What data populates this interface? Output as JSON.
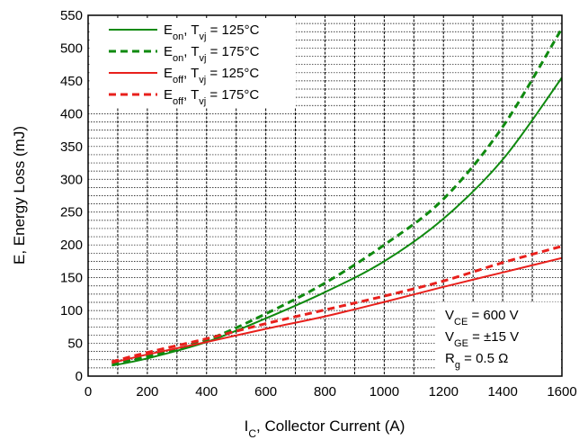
{
  "chart_data": {
    "type": "line",
    "xlabel": {
      "main": "I",
      "sub": "C",
      "rest": ", Collector Current (A)"
    },
    "ylabel": "E, Energy Loss (mJ)",
    "xlim": [
      0,
      1600
    ],
    "ylim": [
      0,
      550
    ],
    "xticks": [
      0,
      200,
      400,
      600,
      800,
      1000,
      1200,
      1400,
      1600
    ],
    "yticks": [
      0,
      50,
      100,
      150,
      200,
      250,
      300,
      350,
      400,
      450,
      500,
      550
    ],
    "grid": true,
    "legend_position": "top-left",
    "series": [
      {
        "name": "E_on, T_vj = 125°C",
        "label": {
          "base": "E",
          "sub": "on",
          "mid": ", T",
          "sub2": "vj",
          "rest": " = 125°C"
        },
        "color": "#0f8a0f",
        "dash": "solid",
        "x": [
          80,
          200,
          400,
          600,
          800,
          1000,
          1200,
          1400,
          1600
        ],
        "y": [
          16,
          27,
          52,
          88,
          128,
          175,
          240,
          330,
          455
        ]
      },
      {
        "name": "E_on, T_vj = 175°C",
        "label": {
          "base": "E",
          "sub": "on",
          "mid": ", T",
          "sub2": "vj",
          "rest": " = 175°C"
        },
        "color": "#0f8a0f",
        "dash": "dashed",
        "x": [
          80,
          200,
          400,
          600,
          800,
          1000,
          1200,
          1400,
          1600
        ],
        "y": [
          19,
          30,
          55,
          95,
          142,
          200,
          270,
          380,
          530
        ]
      },
      {
        "name": "E_off, T_vj = 125°C",
        "label": {
          "base": "E",
          "sub": "off",
          "mid": ", T",
          "sub2": "vj",
          "rest": " = 125°C"
        },
        "color": "#e8201c",
        "dash": "solid",
        "x": [
          80,
          200,
          400,
          600,
          800,
          1000,
          1200,
          1400,
          1600
        ],
        "y": [
          20,
          33,
          52,
          72,
          91,
          113,
          136,
          158,
          180
        ]
      },
      {
        "name": "E_off, T_vj = 175°C",
        "label": {
          "base": "E",
          "sub": "off",
          "mid": ", T",
          "sub2": "vj",
          "rest": " = 175°C"
        },
        "color": "#e8201c",
        "dash": "dashed",
        "x": [
          80,
          200,
          400,
          600,
          800,
          1000,
          1200,
          1400,
          1600
        ],
        "y": [
          22,
          36,
          57,
          80,
          101,
          122,
          145,
          173,
          198
        ]
      }
    ],
    "annotations": [
      {
        "base": "V",
        "sub": "CE",
        "rest": " = 600 V"
      },
      {
        "base": "V",
        "sub": "GE",
        "rest": " = ±15 V"
      },
      {
        "base": "R",
        "sub": "g",
        "rest": " = 0.5 Ω"
      }
    ]
  }
}
